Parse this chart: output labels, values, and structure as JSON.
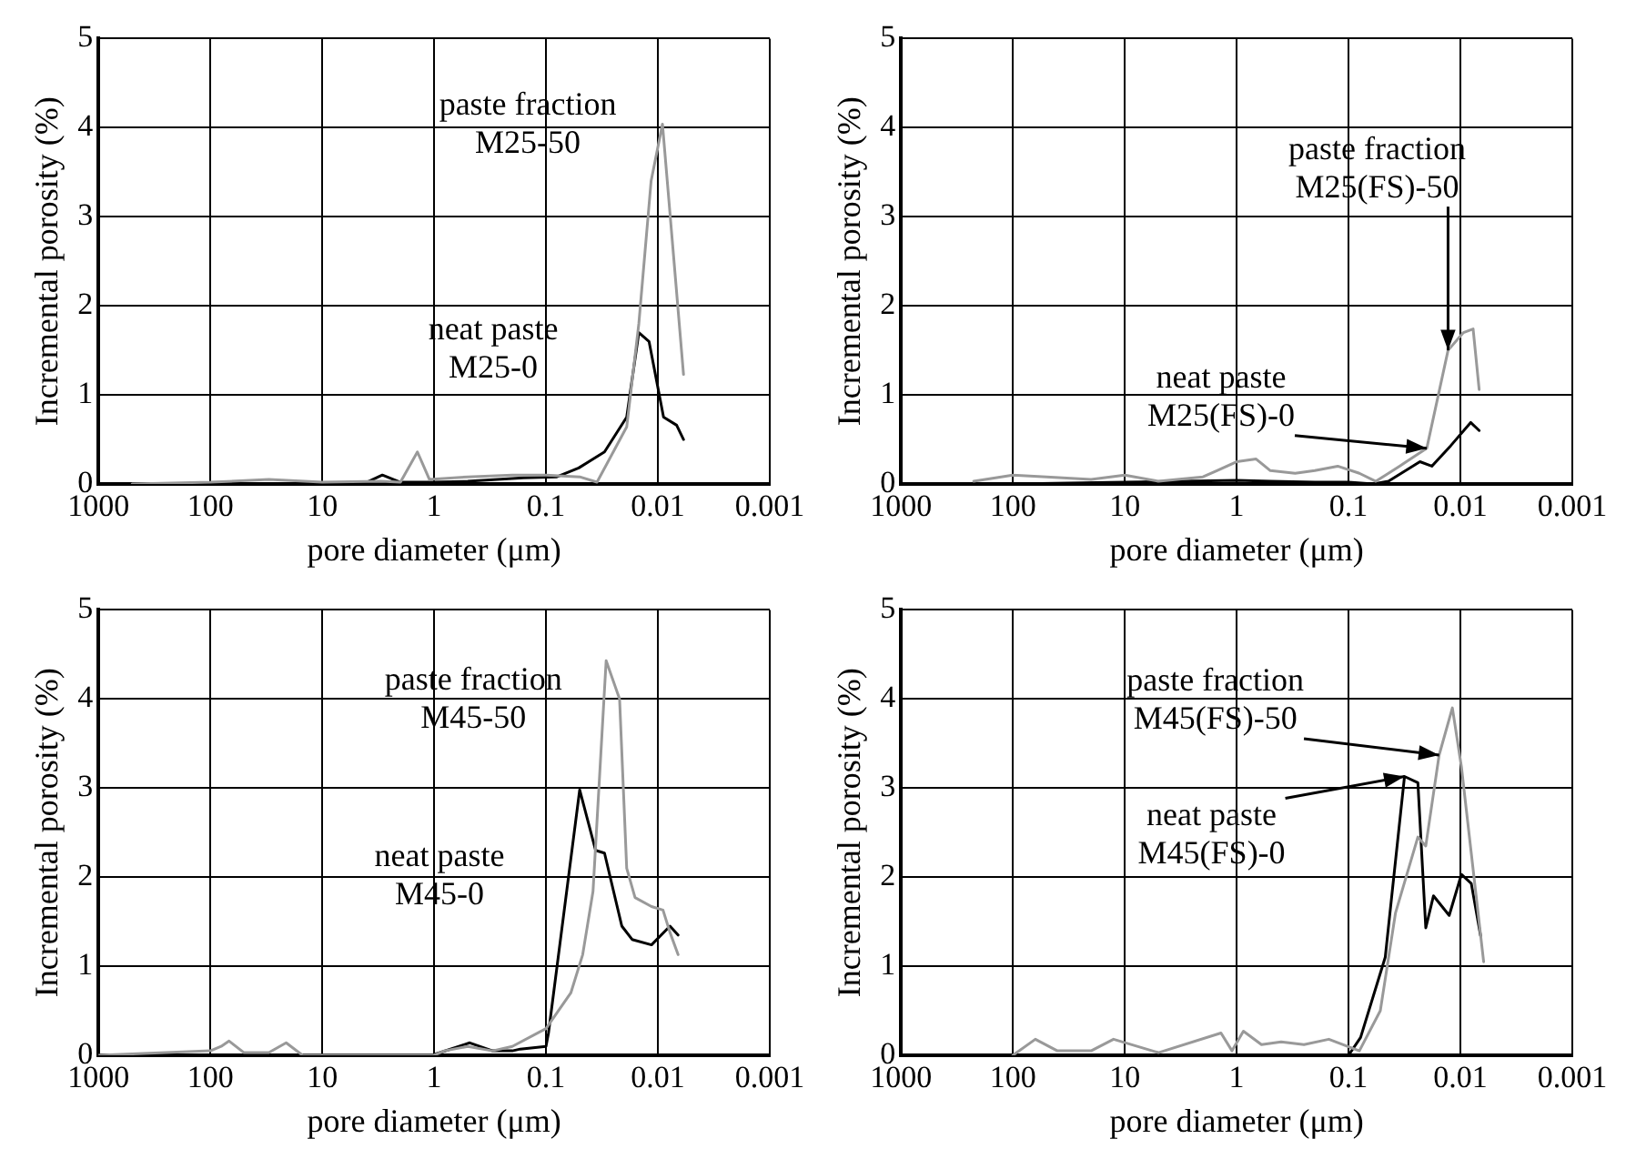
{
  "chart_data": [
    {
      "type": "line",
      "xlabel": "pore diameter (μm)",
      "ylabel": "Incremental porosity (%)",
      "log": "x",
      "xlim": [
        1000,
        0.001
      ],
      "xticks": [
        1000,
        100,
        10,
        1,
        0.1,
        0.01,
        0.001
      ],
      "ylim": [
        0,
        5
      ],
      "yticks": [
        0,
        1,
        2,
        3,
        4,
        5
      ],
      "grid": true,
      "series": [
        {
          "color": "#999999",
          "x": [
            500,
            100,
            30,
            10,
            3,
            2,
            1.41,
            1.1,
            0.5,
            0.2,
            0.1,
            0.05,
            0.035,
            0.019,
            0.0148,
            0.0115,
            0.0091,
            0.0059
          ],
          "values": [
            0,
            0.02,
            0.05,
            0.02,
            0.03,
            0.02,
            0.36,
            0.05,
            0.08,
            0.1,
            0.1,
            0.08,
            0.02,
            0.64,
            1.8,
            3.4,
            4.04,
            1.23
          ]
        },
        {
          "color": "#000000",
          "x": [
            1000,
            10,
            4,
            2.9,
            2,
            1,
            0.5,
            0.16,
            0.08,
            0.051,
            0.03,
            0.019,
            0.0148,
            0.012,
            0.0089,
            0.0068,
            0.0059
          ],
          "values": [
            0,
            0,
            0.02,
            0.1,
            0.02,
            0.02,
            0.03,
            0.07,
            0.08,
            0.18,
            0.36,
            0.75,
            1.7,
            1.6,
            0.75,
            0.66,
            0.5
          ]
        }
      ],
      "annotations": [
        {
          "text": "paste fraction M25-50",
          "x": 0.0091,
          "y": 4.04
        },
        {
          "text": "neat paste M25-0",
          "x": 0.0148,
          "y": 1.7
        }
      ]
    },
    {
      "type": "line",
      "xlabel": "pore diameter (μm)",
      "ylabel": "Incremental porosity (%)",
      "log": "x",
      "xlim": [
        1000,
        0.001
      ],
      "xticks": [
        1000,
        100,
        10,
        1,
        0.1,
        0.01,
        0.001
      ],
      "ylim": [
        0,
        5
      ],
      "yticks": [
        0,
        1,
        2,
        3,
        4,
        5
      ],
      "grid": true,
      "series": [
        {
          "color": "#999999",
          "x": [
            224,
            100,
            50,
            20,
            10,
            5,
            2,
            1.5,
            1,
            0.67,
            0.5,
            0.3,
            0.2,
            0.125,
            0.08,
            0.057,
            0.035,
            0.02,
            0.0129,
            0.0094,
            0.0077,
            0.0068
          ],
          "values": [
            0.03,
            0.1,
            0.08,
            0.05,
            0.1,
            0.03,
            0.08,
            0.15,
            0.25,
            0.28,
            0.15,
            0.12,
            0.15,
            0.2,
            0.12,
            0.03,
            0.2,
            0.4,
            1.5,
            1.7,
            1.74,
            1.06
          ]
        },
        {
          "color": "#000000",
          "x": [
            1000,
            100,
            10,
            1,
            0.5,
            0.2,
            0.1,
            0.06,
            0.044,
            0.023,
            0.018,
            0.0122,
            0.0081,
            0.0068
          ],
          "values": [
            0,
            0,
            0.02,
            0.04,
            0.03,
            0.02,
            0.02,
            0,
            0.03,
            0.25,
            0.2,
            0.43,
            0.69,
            0.6
          ]
        }
      ],
      "annotations": [
        {
          "text": "paste fraction M25(FS)-50",
          "x": 0.0129,
          "y": 1.5
        },
        {
          "text": "neat paste M25(FS)-0",
          "x": 0.02,
          "y": 0.4
        }
      ]
    },
    {
      "type": "line",
      "xlabel": "pore diameter (μm)",
      "ylabel": "Incremental porosity (%)",
      "log": "x",
      "xlim": [
        1000,
        0.001
      ],
      "xticks": [
        1000,
        100,
        10,
        1,
        0.1,
        0.01,
        0.001
      ],
      "ylim": [
        0,
        5
      ],
      "yticks": [
        0,
        1,
        2,
        3,
        4,
        5
      ],
      "grid": true,
      "series": [
        {
          "color": "#999999",
          "x": [
            1000,
            100,
            80,
            68,
            50,
            30,
            21,
            15,
            10,
            1,
            0.81,
            0.5,
            0.3,
            0.2,
            0.1,
            0.06,
            0.047,
            0.038,
            0.029,
            0.022,
            0.019,
            0.016,
            0.0114,
            0.009,
            0.0078,
            0.0066
          ],
          "values": [
            0,
            0.05,
            0.1,
            0.16,
            0.03,
            0.03,
            0.14,
            0,
            0,
            0,
            0.05,
            0.1,
            0.05,
            0.1,
            0.3,
            0.7,
            1.13,
            1.84,
            4.43,
            4.0,
            2.1,
            1.77,
            1.67,
            1.63,
            1.38,
            1.13
          ]
        },
        {
          "color": "#000000",
          "x": [
            1000,
            10,
            1.05,
            0.48,
            0.3,
            0.2,
            0.17,
            0.1,
            0.095,
            0.05,
            0.036,
            0.03,
            0.021,
            0.017,
            0.0114,
            0.0078,
            0.0066
          ],
          "values": [
            0,
            0,
            0,
            0.14,
            0.05,
            0.05,
            0.07,
            0.1,
            0.25,
            2.98,
            2.3,
            2.27,
            1.45,
            1.3,
            1.24,
            1.45,
            1.35
          ]
        }
      ],
      "annotations": [
        {
          "text": "paste fraction M45-50",
          "x": 0.029,
          "y": 4.43
        },
        {
          "text": "neat paste M45-0",
          "x": 0.05,
          "y": 2.98
        }
      ]
    },
    {
      "type": "line",
      "xlabel": "pore diameter (μm)",
      "ylabel": "Incremental porosity (%)",
      "log": "x",
      "xlim": [
        1000,
        0.001
      ],
      "xticks": [
        1000,
        100,
        10,
        1,
        0.1,
        0.01,
        0.001
      ],
      "ylim": [
        0,
        5
      ],
      "yticks": [
        0,
        1,
        2,
        3,
        4,
        5
      ],
      "grid": true,
      "series": [
        {
          "color": "#999999",
          "x": [
            100,
            63,
            40,
            20,
            12.6,
            5,
            1.38,
            1.1,
            0.87,
            0.6,
            0.4,
            0.25,
            0.15,
            0.08,
            0.052,
            0.038,
            0.024,
            0.0204,
            0.0155,
            0.0118,
            0.0098,
            0.0062
          ],
          "values": [
            0,
            0.18,
            0.05,
            0.05,
            0.18,
            0.03,
            0.25,
            0.05,
            0.27,
            0.12,
            0.15,
            0.12,
            0.18,
            0.05,
            0.5,
            1.6,
            2.45,
            2.35,
            3.37,
            3.9,
            3.24,
            1.05
          ]
        },
        {
          "color": "#000000",
          "x": [
            1000,
            10,
            1,
            0.1,
            0.078,
            0.047,
            0.0316,
            0.024,
            0.0204,
            0.0174,
            0.0126,
            0.0098,
            0.008,
            0.0066
          ],
          "values": [
            0,
            0,
            0,
            0,
            0.2,
            1.1,
            3.13,
            3.06,
            1.43,
            1.79,
            1.57,
            2.03,
            1.93,
            1.34
          ]
        }
      ],
      "annotations": [
        {
          "text": "paste fraction M45(FS)-50",
          "x": 0.0155,
          "y": 3.37
        },
        {
          "text": "neat paste M45(FS)-0",
          "x": 0.0316,
          "y": 3.13
        }
      ]
    }
  ]
}
